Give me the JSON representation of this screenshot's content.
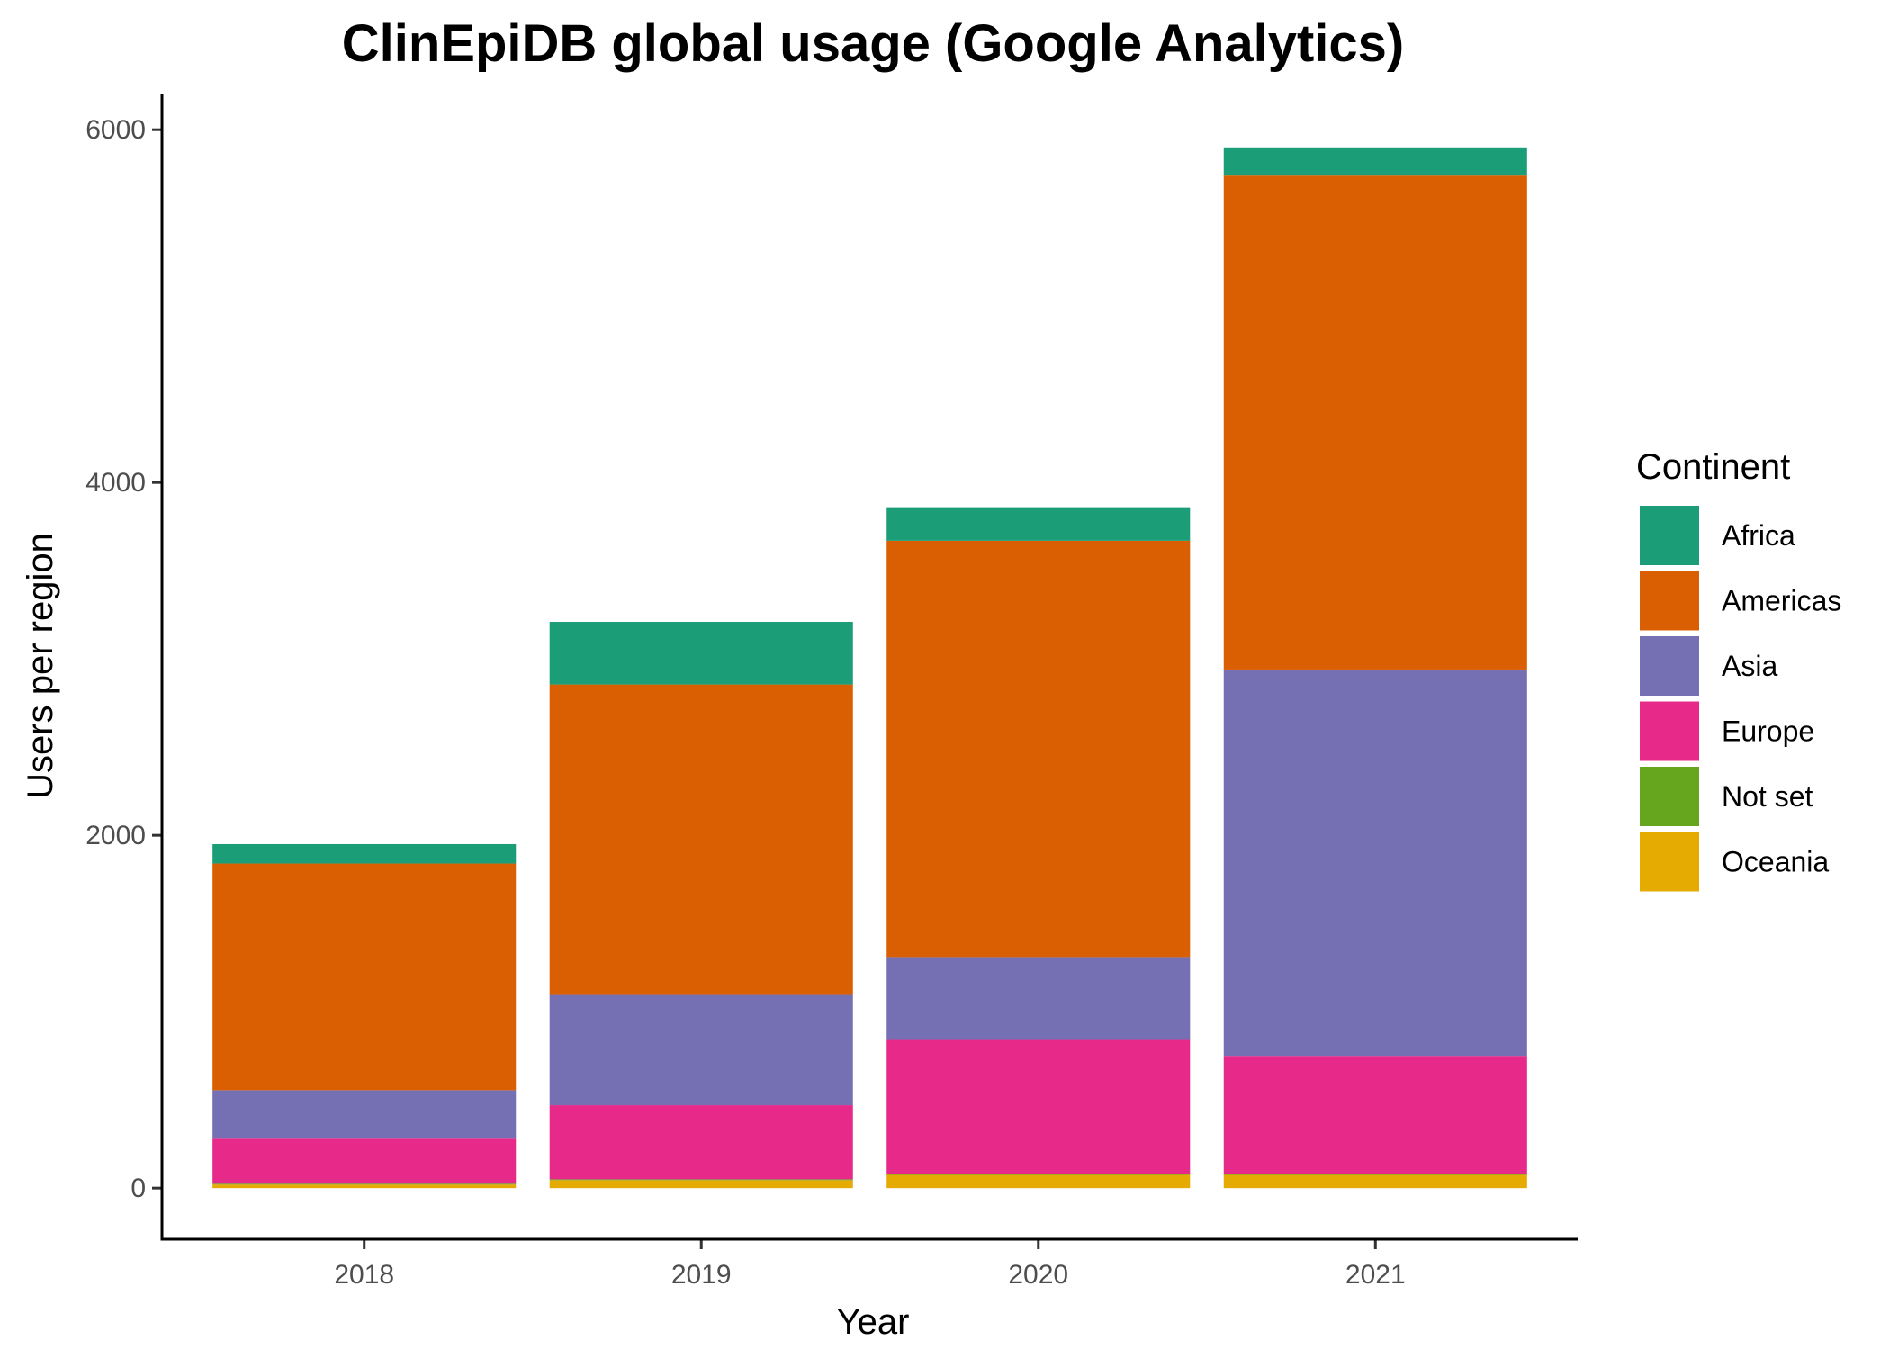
{
  "chart_data": {
    "type": "bar",
    "stacked": true,
    "title": "ClinEpiDB global usage (Google Analytics)",
    "xlabel": "Year",
    "ylabel": "Users per region",
    "categories": [
      "2018",
      "2019",
      "2020",
      "2021"
    ],
    "ylim": [
      -290,
      6200
    ],
    "yticks": [
      0,
      2000,
      4000,
      6000
    ],
    "yticks_labels": [
      "0",
      "2000",
      "4000",
      "6000"
    ],
    "grid": false,
    "legend": {
      "title": "Continent",
      "position": "right"
    },
    "series": [
      {
        "name": "Oceania",
        "color": "#E6AB02",
        "values": [
          20,
          45,
          75,
          75
        ]
      },
      {
        "name": "Not set",
        "color": "#66A61E",
        "values": [
          5,
          5,
          5,
          5
        ]
      },
      {
        "name": "Europe",
        "color": "#E7298A",
        "values": [
          255,
          420,
          760,
          670
        ]
      },
      {
        "name": "Asia",
        "color": "#7570B3",
        "values": [
          275,
          625,
          470,
          2190
        ]
      },
      {
        "name": "Americas",
        "color": "#D95F02",
        "values": [
          1285,
          1760,
          2360,
          2800
        ]
      },
      {
        "name": "Africa",
        "color": "#1B9E77",
        "values": [
          110,
          355,
          190,
          160
        ]
      }
    ],
    "legend_order": [
      "Africa",
      "Americas",
      "Asia",
      "Europe",
      "Not set",
      "Oceania"
    ]
  }
}
